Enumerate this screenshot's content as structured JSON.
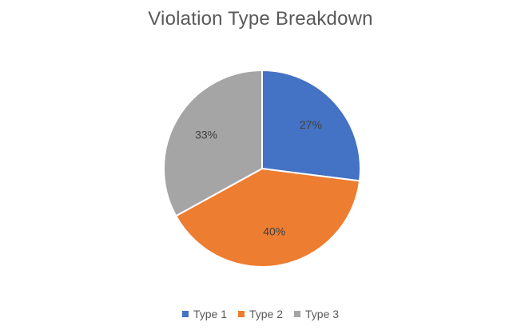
{
  "chart_data": {
    "type": "pie",
    "title": "Violation Type Breakdown",
    "categories": [
      "Type 1",
      "Type 2",
      "Type 3"
    ],
    "values": [
      27,
      40,
      33
    ],
    "data_labels": [
      "27%",
      "40%",
      "33%"
    ],
    "colors": [
      "#4472C4",
      "#ED7D31",
      "#A5A5A5"
    ],
    "start_angle_deg": 0,
    "direction": "clockwise",
    "legend_position": "bottom"
  }
}
